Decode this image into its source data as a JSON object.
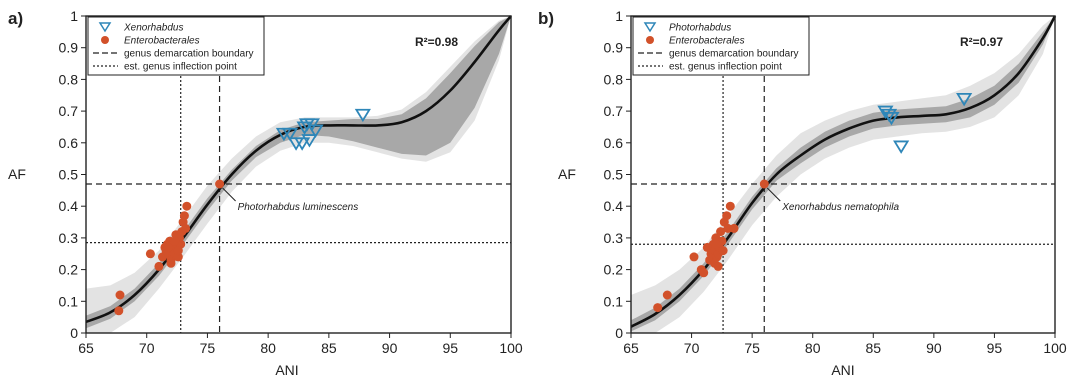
{
  "chart_data": [
    {
      "type": "scatter",
      "panel_label": "a)",
      "xlabel": "ANI",
      "ylabel": "AF",
      "xlim": [
        65,
        100
      ],
      "ylim": [
        0,
        1
      ],
      "xticks": [
        "65",
        "70",
        "75",
        "80",
        "85",
        "90",
        "95",
        "100"
      ],
      "yticks": [
        "0",
        "0.1",
        "0.2",
        "0.3",
        "0.4",
        "0.5",
        "0.6",
        "0.7",
        "0.8",
        "0.9",
        "1"
      ],
      "r2_label": "R²=0.98",
      "annotation": "Photorhabdus luminescens",
      "legend": {
        "position": "top-left",
        "items": [
          {
            "label": "Xenorhabdus",
            "marker": "triangle-down-open",
            "italic": true
          },
          {
            "label": "Enterobacterales",
            "marker": "circle-filled",
            "italic": true
          },
          {
            "label": "genus demarcation boundary",
            "marker": "dashed-line",
            "italic": false
          },
          {
            "label": "est. genus inflection point",
            "marker": "dotted-line",
            "italic": false
          }
        ]
      },
      "ref_lines": {
        "boundary": {
          "x": 76,
          "y": 0.47
        },
        "inflection": {
          "x": 72.8,
          "y": 0.285
        }
      },
      "fit_curve": {
        "x": [
          65,
          67,
          69,
          71,
          73,
          75,
          77,
          79,
          81,
          83,
          85,
          87,
          89,
          91,
          93,
          95,
          97,
          99,
          100
        ],
        "y": [
          0.035,
          0.065,
          0.12,
          0.2,
          0.3,
          0.405,
          0.5,
          0.575,
          0.625,
          0.65,
          0.655,
          0.655,
          0.655,
          0.665,
          0.7,
          0.765,
          0.855,
          0.955,
          1.0
        ]
      },
      "band_outer": {
        "x": [
          65,
          67,
          69,
          71,
          73,
          75,
          77,
          79,
          81,
          83,
          85,
          87,
          89,
          91,
          93,
          95,
          97,
          99,
          100
        ],
        "upper": [
          0.14,
          0.15,
          0.19,
          0.26,
          0.36,
          0.465,
          0.55,
          0.62,
          0.665,
          0.68,
          0.68,
          0.68,
          0.685,
          0.705,
          0.76,
          0.84,
          0.92,
          0.985,
          1.0
        ],
        "lower": [
          0.0,
          0.0,
          0.05,
          0.14,
          0.24,
          0.345,
          0.445,
          0.525,
          0.575,
          0.6,
          0.6,
          0.59,
          0.57,
          0.55,
          0.54,
          0.57,
          0.67,
          0.86,
          1.0
        ]
      },
      "band_inner": {
        "x": [
          65,
          67,
          69,
          71,
          73,
          75,
          77,
          79,
          81,
          83,
          85,
          87,
          89,
          91,
          93,
          95,
          97,
          99,
          100
        ],
        "upper": [
          0.055,
          0.085,
          0.14,
          0.22,
          0.32,
          0.425,
          0.515,
          0.59,
          0.64,
          0.665,
          0.67,
          0.675,
          0.675,
          0.69,
          0.74,
          0.82,
          0.905,
          0.98,
          1.0
        ],
        "lower": [
          0.015,
          0.045,
          0.1,
          0.18,
          0.28,
          0.385,
          0.48,
          0.555,
          0.6,
          0.625,
          0.62,
          0.605,
          0.585,
          0.565,
          0.56,
          0.6,
          0.71,
          0.88,
          1.0
        ]
      },
      "series": [
        {
          "name": "Xenorhabdus",
          "x": [
            81.3,
            81.8,
            82.3,
            82.8,
            83.0,
            83.2,
            83.4,
            83.6,
            83.9,
            87.8
          ],
          "y": [
            0.63,
            0.63,
            0.6,
            0.6,
            0.65,
            0.66,
            0.61,
            0.66,
            0.64,
            0.69
          ]
        },
        {
          "name": "Enterobacterales",
          "x": [
            67.8,
            67.7,
            70.3,
            71.0,
            71.3,
            71.5,
            71.6,
            71.7,
            71.8,
            71.9,
            72.0,
            72.1,
            72.2,
            72.3,
            72.4,
            72.5,
            72.6,
            72.7,
            72.8,
            72.9,
            73.0,
            73.1,
            73.2,
            73.3,
            72.0,
            71.8,
            72.3,
            72.6,
            76.0
          ],
          "y": [
            0.12,
            0.07,
            0.25,
            0.21,
            0.24,
            0.27,
            0.26,
            0.28,
            0.25,
            0.29,
            0.23,
            0.27,
            0.26,
            0.25,
            0.31,
            0.28,
            0.24,
            0.3,
            0.28,
            0.32,
            0.35,
            0.37,
            0.33,
            0.4,
            0.22,
            0.27,
            0.29,
            0.26,
            0.47
          ]
        }
      ]
    },
    {
      "type": "scatter",
      "panel_label": "b)",
      "xlabel": "ANI",
      "ylabel": "AF",
      "xlim": [
        65,
        100
      ],
      "ylim": [
        0,
        1
      ],
      "xticks": [
        "65",
        "70",
        "75",
        "80",
        "85",
        "90",
        "95",
        "100"
      ],
      "yticks": [
        "0",
        "0.1",
        "0.2",
        "0.3",
        "0.4",
        "0.5",
        "0.6",
        "0.7",
        "0.8",
        "0.9",
        "1"
      ],
      "r2_label": "R²=0.97",
      "annotation": "Xenorhabdus nematophila",
      "legend": {
        "position": "top-left",
        "items": [
          {
            "label": "Photorhabdus",
            "marker": "triangle-down-open",
            "italic": true
          },
          {
            "label": "Enterobacterales",
            "marker": "circle-filled",
            "italic": true
          },
          {
            "label": "genus demarcation boundary",
            "marker": "dashed-line",
            "italic": false
          },
          {
            "label": "est. genus inflection point",
            "marker": "dotted-line",
            "italic": false
          }
        ]
      },
      "ref_lines": {
        "boundary": {
          "x": 76,
          "y": 0.47
        },
        "inflection": {
          "x": 72.6,
          "y": 0.28
        }
      },
      "fit_curve": {
        "x": [
          65,
          67,
          69,
          71,
          73,
          75,
          77,
          79,
          81,
          83,
          85,
          87,
          89,
          91,
          93,
          95,
          97,
          99,
          100
        ],
        "y": [
          0.02,
          0.06,
          0.12,
          0.2,
          0.3,
          0.41,
          0.5,
          0.56,
          0.61,
          0.645,
          0.67,
          0.68,
          0.685,
          0.69,
          0.71,
          0.75,
          0.82,
          0.93,
          1.0
        ]
      },
      "band_outer": {
        "x": [
          65,
          67,
          69,
          71,
          73,
          75,
          77,
          79,
          81,
          83,
          85,
          87,
          89,
          91,
          93,
          95,
          97,
          99,
          100
        ],
        "upper": [
          0.12,
          0.15,
          0.2,
          0.27,
          0.37,
          0.47,
          0.56,
          0.63,
          0.67,
          0.7,
          0.72,
          0.73,
          0.74,
          0.75,
          0.78,
          0.82,
          0.88,
          0.97,
          1.0
        ],
        "lower": [
          0.0,
          0.0,
          0.05,
          0.13,
          0.23,
          0.34,
          0.43,
          0.5,
          0.55,
          0.585,
          0.61,
          0.62,
          0.63,
          0.635,
          0.65,
          0.68,
          0.75,
          0.88,
          1.0
        ]
      },
      "band_inner": {
        "x": [
          65,
          67,
          69,
          71,
          73,
          75,
          77,
          79,
          81,
          83,
          85,
          87,
          89,
          91,
          93,
          95,
          97,
          99,
          100
        ],
        "upper": [
          0.04,
          0.08,
          0.14,
          0.22,
          0.32,
          0.43,
          0.52,
          0.585,
          0.635,
          0.67,
          0.695,
          0.705,
          0.71,
          0.715,
          0.74,
          0.78,
          0.85,
          0.95,
          1.0
        ],
        "lower": [
          0.005,
          0.04,
          0.1,
          0.18,
          0.28,
          0.39,
          0.48,
          0.535,
          0.585,
          0.62,
          0.645,
          0.655,
          0.66,
          0.665,
          0.68,
          0.72,
          0.79,
          0.91,
          1.0
        ]
      },
      "series": [
        {
          "name": "Photorhabdus",
          "x": [
            86.0,
            86.3,
            86.5,
            92.5,
            87.3
          ],
          "y": [
            0.7,
            0.69,
            0.68,
            0.74,
            0.59
          ]
        },
        {
          "name": "Enterobacterales",
          "x": [
            67.2,
            68.0,
            70.2,
            70.8,
            71.0,
            71.3,
            71.5,
            71.6,
            71.8,
            71.9,
            72.0,
            72.1,
            72.2,
            72.3,
            72.4,
            72.5,
            72.6,
            72.7,
            72.9,
            73.0,
            73.2,
            73.5,
            71.9,
            72.2,
            72.0,
            76.0
          ],
          "y": [
            0.08,
            0.12,
            0.24,
            0.2,
            0.19,
            0.27,
            0.23,
            0.25,
            0.28,
            0.26,
            0.3,
            0.24,
            0.25,
            0.27,
            0.32,
            0.29,
            0.26,
            0.35,
            0.37,
            0.33,
            0.4,
            0.33,
            0.22,
            0.21,
            0.28,
            0.47
          ]
        }
      ]
    }
  ]
}
